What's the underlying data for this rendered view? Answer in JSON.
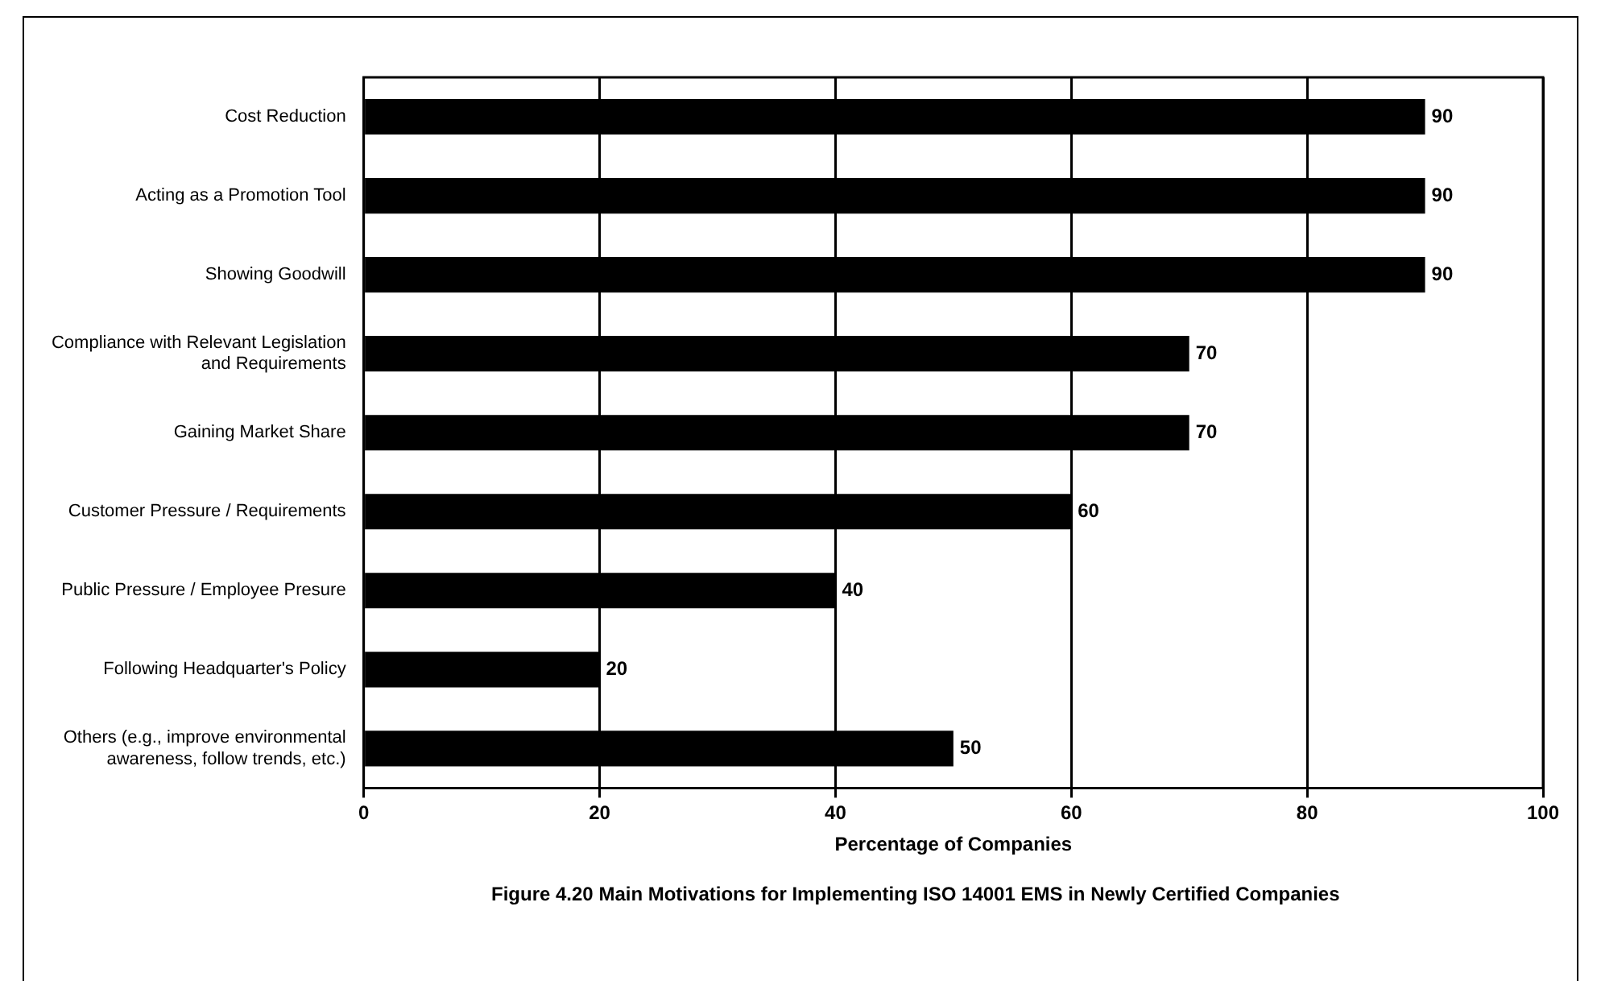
{
  "chart_data": {
    "type": "bar",
    "orientation": "horizontal",
    "xlabel": "Percentage of Companies",
    "categories": [
      "Cost Reduction",
      "Acting as a Promotion Tool",
      "Showing Goodwill",
      "Compliance with Relevant Legislation and Requirements",
      "Gaining Market Share",
      "Customer Pressure / Requirements",
      "Public Pressure / Employee Presure",
      "Following Headquarter's Policy",
      "Others (e.g., improve environmental awareness, follow trends, etc.)"
    ],
    "values": [
      90,
      90,
      90,
      70,
      70,
      60,
      40,
      20,
      50
    ],
    "color": "#000000",
    "xlim": [
      0,
      100
    ],
    "xticks": [
      0,
      20,
      40,
      60,
      80,
      100
    ],
    "grid": "x",
    "data_labels": true,
    "legend": false,
    "annotations": [
      "Figure 4.20  Main Motivations for Implementing ISO 14001 EMS in Newly Certified Companies"
    ]
  }
}
